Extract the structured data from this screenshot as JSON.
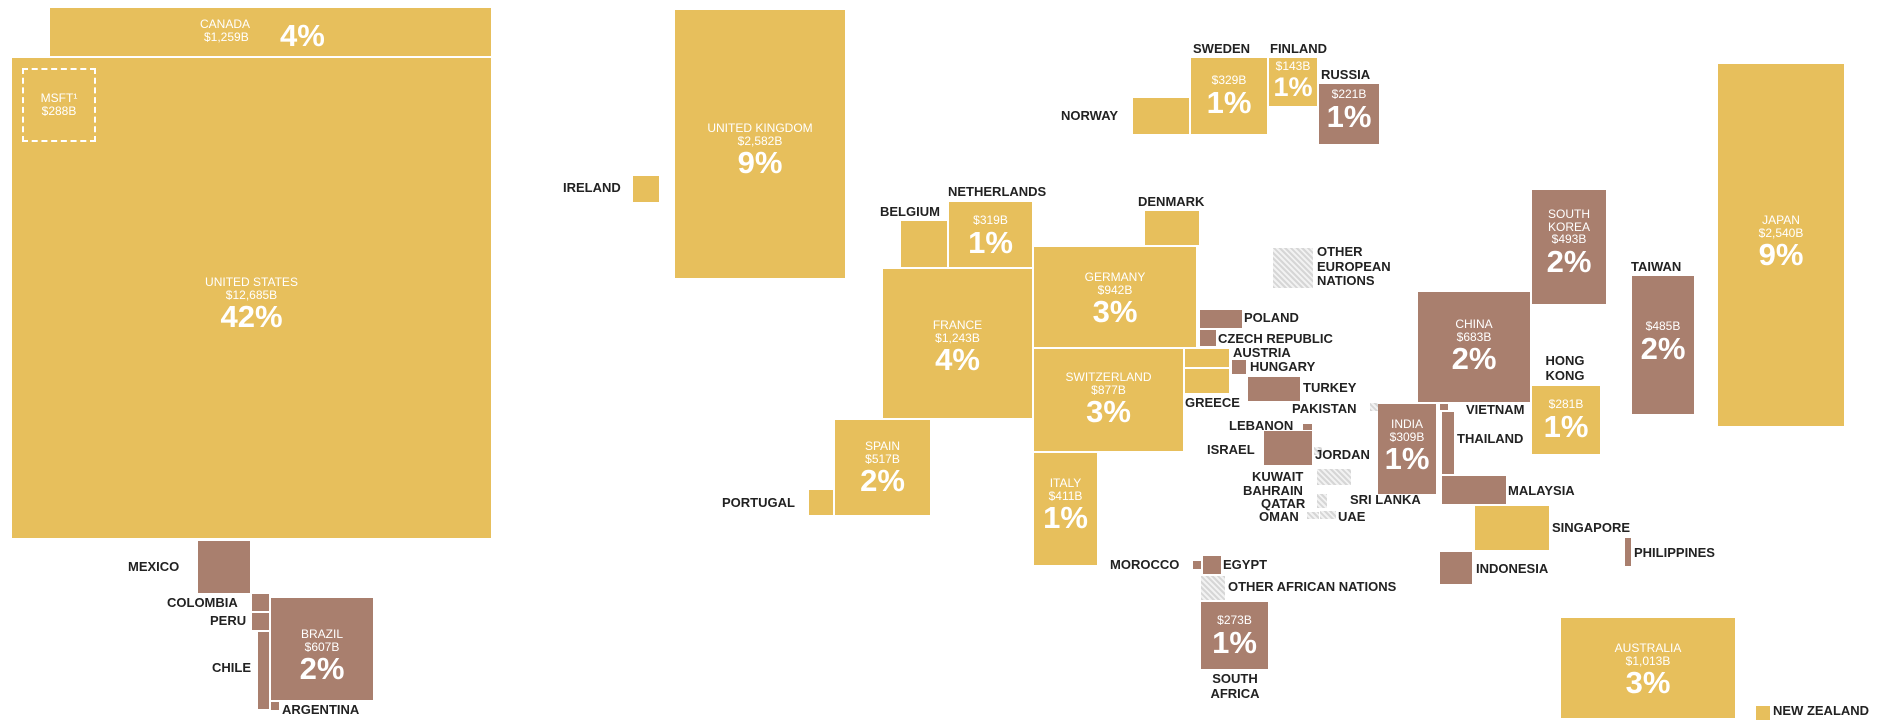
{
  "colors": {
    "developed": "#e7bf5c",
    "emerging": "#a97f6e",
    "other": "#d6d6d6"
  },
  "americas": {
    "canada": {
      "name": "CANADA",
      "value": "$1,259B",
      "pct": "4%"
    },
    "united_states": {
      "name": "UNITED STATES",
      "value": "$12,685B",
      "pct": "42%"
    },
    "msft": {
      "name": "MSFT¹",
      "value": "$288B"
    },
    "mexico": {
      "name": "MEXICO"
    },
    "colombia": {
      "name": "COLOMBIA"
    },
    "peru": {
      "name": "PERU"
    },
    "chile": {
      "name": "CHILE"
    },
    "brazil": {
      "name": "BRAZIL",
      "value": "$607B",
      "pct": "2%"
    },
    "argentina": {
      "name": "ARGENTINA"
    }
  },
  "europe": {
    "ireland": {
      "name": "IRELAND"
    },
    "united_kingdom": {
      "name": "UNITED KINGDOM",
      "value": "$2,582B",
      "pct": "9%"
    },
    "norway": {
      "name": "NORWAY"
    },
    "sweden": {
      "name": "SWEDEN",
      "value": "$329B",
      "pct": "1%"
    },
    "finland": {
      "name": "FINLAND",
      "value": "$143B",
      "pct": "1%"
    },
    "russia": {
      "name": "RUSSIA",
      "value": "$221B",
      "pct": "1%"
    },
    "belgium": {
      "name": "BELGIUM"
    },
    "netherlands": {
      "name": "NETHERLANDS",
      "value": "$319B",
      "pct": "1%"
    },
    "denmark": {
      "name": "DENMARK"
    },
    "germany": {
      "name": "GERMANY",
      "value": "$942B",
      "pct": "3%"
    },
    "france": {
      "name": "FRANCE",
      "value": "$1,243B",
      "pct": "4%"
    },
    "switzerland": {
      "name": "SWITZERLAND",
      "value": "$877B",
      "pct": "3%"
    },
    "spain": {
      "name": "SPAIN",
      "value": "$517B",
      "pct": "2%"
    },
    "portugal": {
      "name": "PORTUGAL"
    },
    "italy": {
      "name": "ITALY",
      "value": "$411B",
      "pct": "1%"
    },
    "poland": {
      "name": "POLAND"
    },
    "czech": {
      "name": "CZECH REPUBLIC"
    },
    "austria": {
      "name": "AUSTRIA"
    },
    "hungary": {
      "name": "HUNGARY"
    },
    "greece": {
      "name": "GREECE"
    },
    "turkey": {
      "name": "TURKEY"
    },
    "other_european": {
      "name": "OTHER EUROPEAN NATIONS"
    }
  },
  "middle_east": {
    "lebanon": {
      "name": "LEBANON"
    },
    "israel": {
      "name": "ISRAEL"
    },
    "jordan": {
      "name": "JORDAN"
    },
    "kuwait": {
      "name": "KUWAIT"
    },
    "bahrain": {
      "name": "BAHRAIN"
    },
    "qatar": {
      "name": "QATAR"
    },
    "oman": {
      "name": "OMAN"
    },
    "uae": {
      "name": "UAE"
    },
    "pakistan": {
      "name": "PAKISTAN"
    }
  },
  "africa": {
    "morocco": {
      "name": "MOROCCO"
    },
    "egypt": {
      "name": "EGYPT"
    },
    "other_african": {
      "name": "OTHER AFRICAN NATIONS"
    },
    "south_africa": {
      "name": "SOUTH AFRICA",
      "value": "$273B",
      "pct": "1%"
    }
  },
  "asia": {
    "china": {
      "name": "CHINA",
      "value": "$683B",
      "pct": "2%"
    },
    "india": {
      "name": "INDIA",
      "value": "$309B",
      "pct": "1%"
    },
    "sri_lanka": {
      "name": "SRI LANKA"
    },
    "vietnam": {
      "name": "VIETNAM"
    },
    "thailand": {
      "name": "THAILAND"
    },
    "malaysia": {
      "name": "MALAYSIA"
    },
    "singapore": {
      "name": "SINGAPORE"
    },
    "indonesia": {
      "name": "INDONESIA"
    },
    "philippines": {
      "name": "PHILIPPINES"
    },
    "south_korea": {
      "name": "SOUTH KOREA",
      "value": "$493B",
      "pct": "2%"
    },
    "hong_kong": {
      "name": "HONG KONG",
      "value": "$281B",
      "pct": "1%"
    },
    "taiwan": {
      "name": "TAIWAN",
      "value": "$485B",
      "pct": "2%"
    },
    "japan": {
      "name": "JAPAN",
      "value": "$2,540B",
      "pct": "9%"
    }
  },
  "oceania": {
    "australia": {
      "name": "AUSTRALIA",
      "value": "$1,013B",
      "pct": "3%"
    },
    "new_zealand": {
      "name": "NEW ZEALAND"
    }
  }
}
